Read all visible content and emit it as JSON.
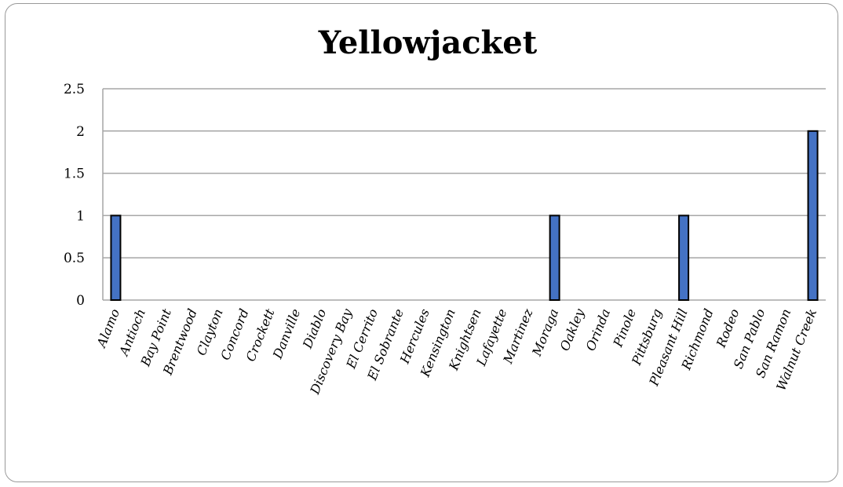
{
  "chart_data": {
    "type": "bar",
    "title": "Yellowjacket",
    "categories": [
      "Alamo",
      "Antioch",
      "Bay Point",
      "Brentwood",
      "Clayton",
      "Concord",
      "Crockett",
      "Danville",
      "Diablo",
      "Discovery Bay",
      "El Cerrito",
      "El Sobrante",
      "Hercules",
      "Kensington",
      "Knightsen",
      "Lafayette",
      "Martinez",
      "Moraga",
      "Oakley",
      "Orinda",
      "Pinole",
      "Pittsburg",
      "Pleasant Hill",
      "Richmond",
      "Rodeo",
      "San Pablo",
      "San Ramon",
      "Walnut Creek"
    ],
    "values": [
      1,
      0,
      0,
      0,
      0,
      0,
      0,
      0,
      0,
      0,
      0,
      0,
      0,
      0,
      0,
      0,
      0,
      1,
      0,
      0,
      0,
      0,
      1,
      0,
      0,
      0,
      0,
      2
    ],
    "ylim": [
      0,
      2.5
    ],
    "yticks": [
      "0",
      "0.5",
      "1",
      "1.5",
      "2",
      "2.5"
    ],
    "xlabel": "",
    "ylabel": "",
    "grid": true,
    "legend": "none",
    "colors": {
      "bar_fill": "#4472C4",
      "bar_stroke": "#000000",
      "grid": "#a6a6a6",
      "axis": "#a6a6a6"
    }
  }
}
